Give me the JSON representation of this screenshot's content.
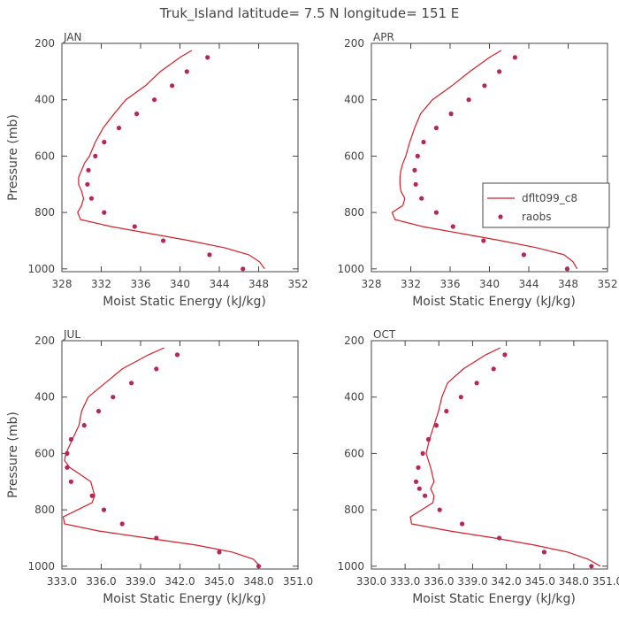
{
  "figure_title": "Truk_Island  latitude= 7.5 N longitude= 151 E",
  "colors": {
    "model": "#d11f29",
    "obs": "#b3275a",
    "axis": "#444444"
  },
  "legend": {
    "model_label": "dflt099_c8",
    "obs_label": "raobs",
    "placement": "right-middle of APR panel"
  },
  "chart_data": [
    {
      "type": "line",
      "title": "JAN",
      "xlabel": "Moist Static Energy (kJ/kg)",
      "ylabel": "Pressure (mb)",
      "xlim": [
        328,
        352
      ],
      "ylim": [
        1010,
        200
      ],
      "xticks": [
        328,
        332,
        336,
        340,
        344,
        348,
        352
      ],
      "xtick_labels": [
        "328",
        "332",
        "336",
        "340",
        "344",
        "348",
        "352"
      ],
      "yticks": [
        200,
        400,
        600,
        800,
        1000
      ],
      "ytick_labels": [
        "200",
        "400",
        "600",
        "800",
        "1000"
      ],
      "series": [
        {
          "name": "dflt099_c8",
          "kind": "line",
          "x": [
            341.2,
            340.0,
            338.0,
            336.5,
            334.5,
            333.3,
            332.2,
            331.4,
            330.8,
            330.3,
            330.0,
            329.7,
            329.7,
            330.0,
            330.2,
            330.0,
            329.6,
            329.9,
            333.0,
            337.0,
            341.0,
            344.5,
            347.0,
            348.1,
            348.6
          ],
          "y": [
            225,
            250,
            300,
            350,
            400,
            450,
            500,
            550,
            600,
            625,
            650,
            675,
            700,
            725,
            750,
            775,
            800,
            825,
            850,
            875,
            900,
            925,
            950,
            975,
            1000
          ]
        },
        {
          "name": "raobs",
          "kind": "scatter",
          "x": [
            342.8,
            340.7,
            339.2,
            337.4,
            335.6,
            333.8,
            332.3,
            331.4,
            330.7,
            330.6,
            331.0,
            332.3,
            335.4,
            338.3,
            343.0,
            346.4
          ],
          "y": [
            250,
            300,
            350,
            400,
            450,
            500,
            550,
            600,
            650,
            700,
            750,
            800,
            850,
            900,
            950,
            1000
          ]
        }
      ]
    },
    {
      "type": "line",
      "title": "APR",
      "xlabel": "Moist Static Energy (kJ/kg)",
      "ylabel": "",
      "xlim": [
        328,
        352
      ],
      "ylim": [
        1010,
        200
      ],
      "xticks": [
        328,
        332,
        336,
        340,
        344,
        348,
        352
      ],
      "xtick_labels": [
        "328",
        "332",
        "336",
        "340",
        "344",
        "348",
        "352"
      ],
      "yticks": [
        200,
        400,
        600,
        800,
        1000
      ],
      "ytick_labels": [
        "200",
        "400",
        "600",
        "800",
        "1000"
      ],
      "series": [
        {
          "name": "dflt099_c8",
          "kind": "line",
          "x": [
            341.2,
            340.0,
            338.0,
            336.2,
            334.2,
            333.0,
            332.4,
            331.9,
            331.5,
            331.2,
            331.0,
            330.9,
            330.9,
            331.0,
            331.4,
            331.2,
            330.1,
            330.4,
            333.2,
            337.2,
            341.2,
            344.8,
            347.6,
            348.5,
            348.9
          ],
          "y": [
            225,
            250,
            300,
            350,
            400,
            450,
            500,
            550,
            600,
            625,
            650,
            675,
            700,
            725,
            750,
            775,
            800,
            825,
            850,
            875,
            900,
            925,
            950,
            975,
            1000
          ]
        },
        {
          "name": "raobs",
          "kind": "scatter",
          "x": [
            342.6,
            341.0,
            339.5,
            337.9,
            336.1,
            334.6,
            333.3,
            332.7,
            332.4,
            332.5,
            333.1,
            334.6,
            336.3,
            339.4,
            343.5,
            347.9
          ],
          "y": [
            250,
            300,
            350,
            400,
            450,
            500,
            550,
            600,
            650,
            700,
            750,
            800,
            850,
            900,
            950,
            1000
          ]
        }
      ]
    },
    {
      "type": "line",
      "title": "JUL",
      "xlabel": "Moist Static Energy (kJ/kg)",
      "ylabel": "Pressure (mb)",
      "xlim": [
        333,
        351
      ],
      "ylim": [
        1010,
        200
      ],
      "xticks": [
        333,
        336,
        339,
        342,
        345,
        348,
        351
      ],
      "xtick_labels": [
        "333.0",
        "336.0",
        "339.0",
        "342.0",
        "345.0",
        "348.0",
        "351.0"
      ],
      "yticks": [
        200,
        400,
        600,
        800,
        1000
      ],
      "ytick_labels": [
        "200",
        "400",
        "600",
        "800",
        "1000"
      ],
      "series": [
        {
          "name": "dflt099_c8",
          "kind": "line",
          "x": [
            340.8,
            339.6,
            337.6,
            336.3,
            335.0,
            334.5,
            334.3,
            333.8,
            333.3,
            333.2,
            333.6,
            334.4,
            335.2,
            335.5,
            335.3,
            334.2,
            333.1,
            333.2,
            335.8,
            339.5,
            343.2,
            346.0,
            347.6,
            348.1
          ],
          "y": [
            225,
            250,
            300,
            350,
            400,
            450,
            500,
            550,
            600,
            625,
            650,
            675,
            700,
            750,
            775,
            800,
            825,
            850,
            875,
            900,
            925,
            950,
            975,
            1000
          ]
        },
        {
          "name": "raobs",
          "kind": "scatter",
          "x": [
            341.8,
            340.2,
            338.3,
            336.9,
            335.8,
            334.7,
            333.7,
            333.4,
            333.4,
            333.7,
            335.3,
            336.2,
            337.6,
            340.2,
            345.0,
            348.0
          ],
          "y": [
            250,
            300,
            350,
            400,
            450,
            500,
            550,
            600,
            650,
            700,
            750,
            800,
            850,
            900,
            950,
            1000
          ]
        }
      ]
    },
    {
      "type": "line",
      "title": "OCT",
      "xlabel": "Moist Static Energy (kJ/kg)",
      "ylabel": "",
      "xlim": [
        330.03,
        351.03
      ],
      "ylim": [
        1010,
        200
      ],
      "xticks": [
        330.03,
        333.03,
        336.03,
        339.03,
        342.03,
        345.03,
        348.03,
        351.03
      ],
      "xtick_labels": [
        "330.0",
        "333.0",
        "336.0",
        "339.0",
        "342.0",
        "345.0",
        "348.0",
        "351.0"
      ],
      "yticks": [
        200,
        400,
        600,
        800,
        1000
      ],
      "ytick_labels": [
        "200",
        "400",
        "600",
        "800",
        "1000"
      ],
      "series": [
        {
          "name": "dflt099_c8",
          "kind": "line",
          "x": [
            341.5,
            340.2,
            338.2,
            336.8,
            336.3,
            336.0,
            335.6,
            335.2,
            334.9,
            335.3,
            335.6,
            335.3,
            335.6,
            335.5,
            334.5,
            333.5,
            333.6,
            337.0,
            341.0,
            344.5,
            347.5,
            349.3,
            350.4
          ],
          "y": [
            225,
            250,
            300,
            350,
            400,
            450,
            500,
            550,
            600,
            650,
            700,
            725,
            750,
            775,
            800,
            825,
            850,
            875,
            900,
            925,
            950,
            975,
            1000
          ]
        },
        {
          "name": "raobs",
          "kind": "scatter",
          "x": [
            341.9,
            340.9,
            339.4,
            338.0,
            336.7,
            335.8,
            335.1,
            334.6,
            334.2,
            334.0,
            334.3,
            334.8,
            336.1,
            338.1,
            341.4,
            345.4,
            349.6
          ],
          "y": [
            250,
            300,
            350,
            400,
            450,
            500,
            550,
            600,
            650,
            700,
            725,
            750,
            800,
            850,
            900,
            950,
            1000
          ]
        }
      ]
    }
  ]
}
